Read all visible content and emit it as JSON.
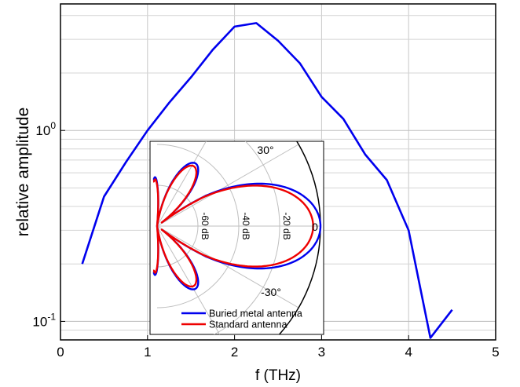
{
  "chart_data": [
    {
      "type": "line",
      "xlabel": "f (THz)",
      "ylabel": "relative amplitude",
      "x_scale": "linear",
      "y_scale": "log",
      "xlim": [
        0,
        5
      ],
      "ylim": [
        0.08,
        4.6
      ],
      "xticks": [
        0,
        1,
        2,
        3,
        4,
        5
      ],
      "xtick_labels": [
        "0",
        "1",
        "2",
        "3",
        "4",
        "5"
      ],
      "yticks": [
        0.1,
        1
      ],
      "ytick_labels": [
        {
          "base": "10",
          "exp": "-1"
        },
        {
          "base": "10",
          "exp": "0"
        }
      ],
      "grid": true,
      "series": [
        {
          "color": "#0000ee",
          "x": [
            0.25,
            0.5,
            0.75,
            1.0,
            1.25,
            1.5,
            1.75,
            2.0,
            2.25,
            2.5,
            2.75,
            3.0,
            3.25,
            3.5,
            3.75,
            4.0,
            4.25,
            4.5
          ],
          "y": [
            0.2,
            0.45,
            0.68,
            1.0,
            1.4,
            1.9,
            2.65,
            3.5,
            3.65,
            2.95,
            2.25,
            1.5,
            1.15,
            0.75,
            0.55,
            0.3,
            0.082,
            0.115
          ]
        }
      ]
    },
    {
      "type": "polar",
      "angular_ticks": [
        {
          "angle": 30,
          "label": "30°"
        },
        {
          "angle": 0,
          "label": "0"
        },
        {
          "angle": -30,
          "label": "-30°"
        }
      ],
      "radial_range_db": [
        -80,
        0
      ],
      "radial_ticks": [
        {
          "db": -60,
          "label": "-60 dB"
        },
        {
          "db": -40,
          "label": "-40 dB"
        },
        {
          "db": -20,
          "label": "-20 dB"
        }
      ],
      "legend": {
        "position": "bottom"
      },
      "series": [
        {
          "name": "Buried metal antenna",
          "color": "#0000ee"
        },
        {
          "name": "Standard antenna",
          "color": "#ee0000"
        }
      ]
    }
  ]
}
